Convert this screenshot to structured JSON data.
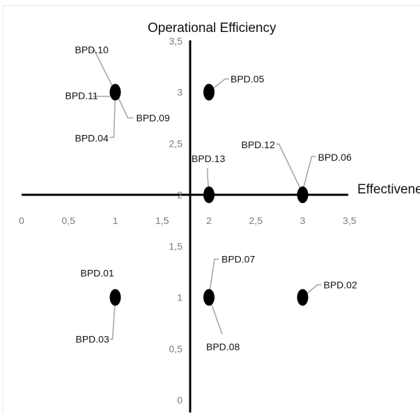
{
  "chart_data": {
    "type": "scatter",
    "xlabel": "Effectiveness",
    "ylabel": "Operational Efficiency",
    "xlim": [
      0,
      3.5
    ],
    "ylim": [
      0,
      3.5
    ],
    "x_ticks": [
      "0",
      "0,5",
      "1",
      "1,5",
      "2",
      "2,5",
      "3",
      "3,5"
    ],
    "y_ticks": [
      "0",
      "0,5",
      "1",
      "1,5",
      "2",
      "2,5",
      "3",
      "3,5"
    ],
    "x_tick_values": [
      0,
      0.5,
      1,
      1.5,
      2,
      2.5,
      3,
      3.5
    ],
    "y_tick_values": [
      0,
      0.5,
      1,
      1.5,
      2,
      2.5,
      3,
      3.5
    ],
    "axes_cross": {
      "x": 2,
      "y": 2
    },
    "grid": false,
    "points": [
      {
        "x": 1,
        "y": 3,
        "labels": [
          "BPD.10",
          "BPD.11",
          "BPD.09",
          "BPD.04"
        ]
      },
      {
        "x": 2,
        "y": 3,
        "labels": [
          "BPD.05"
        ]
      },
      {
        "x": 2,
        "y": 2,
        "labels": [
          "BPD.13"
        ]
      },
      {
        "x": 3,
        "y": 2,
        "labels": [
          "BPD.12",
          "BPD.06"
        ]
      },
      {
        "x": 1,
        "y": 1,
        "labels": [
          "BPD.01",
          "BPD.03"
        ]
      },
      {
        "x": 2,
        "y": 1,
        "labels": [
          "BPD.07",
          "BPD.08"
        ]
      },
      {
        "x": 3,
        "y": 1,
        "labels": [
          "BPD.02"
        ]
      }
    ]
  }
}
